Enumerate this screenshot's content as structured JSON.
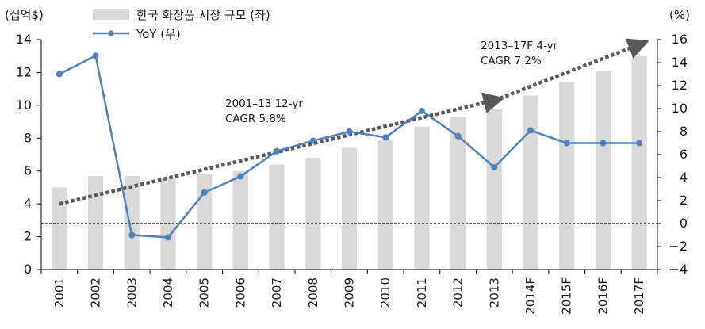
{
  "chart_data": {
    "type": "bar+line",
    "categories": [
      "2001",
      "2002",
      "2003",
      "2004",
      "2005",
      "2006",
      "2007",
      "2008",
      "2009",
      "2010",
      "2011",
      "2012",
      "2013",
      "2014F",
      "2015F",
      "2016F",
      "2017F"
    ],
    "series": [
      {
        "name": "한국 화장품 시장 규모 (좌)",
        "type": "bar",
        "axis": "left",
        "color": "#d9d9d9",
        "values": [
          5.0,
          5.7,
          5.7,
          5.6,
          5.8,
          6.0,
          6.4,
          6.8,
          7.4,
          7.9,
          8.7,
          9.3,
          9.8,
          10.6,
          11.4,
          12.1,
          13.0
        ]
      },
      {
        "name": "YoY (우)",
        "type": "line",
        "axis": "right",
        "color": "#4f81bd",
        "values": [
          13.0,
          14.6,
          -1.0,
          -1.2,
          2.7,
          4.1,
          6.3,
          7.2,
          8.0,
          7.5,
          9.8,
          7.6,
          4.9,
          8.1,
          7.0,
          7.0,
          7.0
        ]
      }
    ],
    "y_left": {
      "label": "(십억$)",
      "min": 0,
      "max": 14,
      "ticks": [
        0,
        2,
        4,
        6,
        8,
        10,
        12,
        14
      ]
    },
    "y_right": {
      "label": "(%)",
      "min": -4,
      "max": 16,
      "ticks": [
        -4,
        -2,
        0,
        2,
        4,
        6,
        8,
        10,
        12,
        14,
        16
      ]
    },
    "zero_line_right": 0,
    "trend_arrows": [
      {
        "from_category": "2001",
        "to_category": "2013",
        "from_value": 4.0,
        "to_value": 10.3,
        "axis": "left"
      },
      {
        "from_category": "2013",
        "to_category": "2017F",
        "from_value": 10.3,
        "to_value": 13.7,
        "axis": "left"
      }
    ],
    "annotations": [
      {
        "lines": [
          "2001–13 12-yr",
          "CAGR 5.8%"
        ]
      },
      {
        "lines": [
          "2013–17F 4-yr",
          "CAGR 7.2%"
        ]
      }
    ],
    "legend_position": "top-center",
    "grid": false
  }
}
